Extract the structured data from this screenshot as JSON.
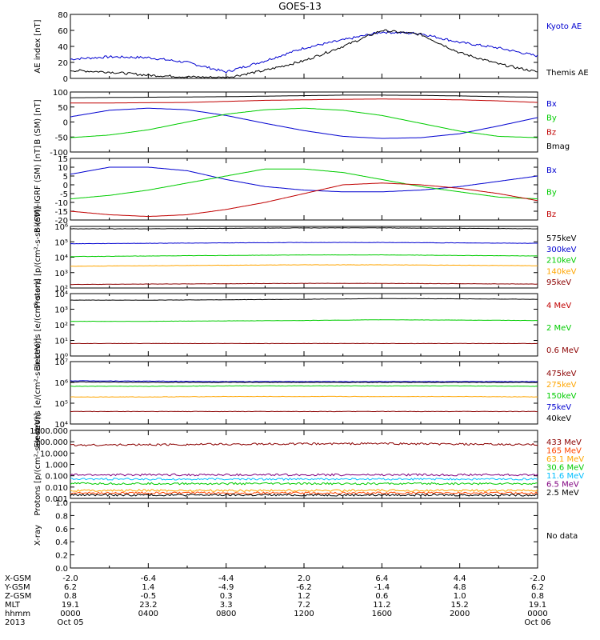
{
  "figure": {
    "title": "GOES-13",
    "nodata_label": "No data",
    "footer_rows": [
      {
        "label": "X-GSM",
        "values": [
          "-2.0",
          "-6.4",
          "-4.4",
          "2.0",
          "6.4",
          "4.4",
          "-2.0"
        ]
      },
      {
        "label": "Y-GSM",
        "values": [
          "6.2",
          "1.4",
          "-4.9",
          "-6.2",
          "-1.4",
          "4.8",
          "6.2"
        ]
      },
      {
        "label": "Z-GSM",
        "values": [
          "0.8",
          "-0.5",
          "0.3",
          "1.2",
          "0.6",
          "1.0",
          "0.8"
        ]
      },
      {
        "label": "MLT",
        "values": [
          "19.1",
          "23.2",
          "3.3",
          "7.2",
          "11.2",
          "15.2",
          "19.1"
        ]
      },
      {
        "label": "hhmm",
        "values": [
          "0000",
          "0400",
          "0800",
          "1200",
          "1600",
          "2000",
          "0000"
        ]
      },
      {
        "label": "2013",
        "values": [
          "Oct 05",
          "",
          "",
          "",
          "",
          "",
          "Oct 06"
        ]
      }
    ]
  },
  "chart_data": [
    {
      "type": "line",
      "ylabel": "AE index [nT]",
      "ylim": [
        0,
        80
      ],
      "yscale": "linear",
      "yticks": [
        "0",
        "20",
        "40",
        "60",
        "80"
      ],
      "x_hours": [
        0,
        2,
        4,
        6,
        8,
        10,
        12,
        14,
        16,
        18,
        20,
        22,
        24
      ],
      "series": [
        {
          "name": "Kyoto AE",
          "color": "#0000d0",
          "values": [
            24,
            27,
            26,
            20,
            8,
            22,
            38,
            48,
            58,
            56,
            45,
            38,
            28
          ]
        },
        {
          "name": "Themis AE",
          "color": "#000000",
          "values": [
            10,
            8,
            4,
            2,
            1,
            10,
            22,
            40,
            60,
            55,
            32,
            18,
            8
          ]
        }
      ]
    },
    {
      "type": "line",
      "ylabel": "B (SM) [nT]",
      "ylim": [
        -110,
        120
      ],
      "yscale": "linear",
      "yticks": [
        "-100",
        "-50",
        "0",
        "50",
        "100"
      ],
      "x_hours": [
        0,
        2,
        4,
        6,
        8,
        10,
        12,
        14,
        16,
        18,
        20,
        22,
        24
      ],
      "series": [
        {
          "name": "Bx",
          "color": "#0000d0",
          "values": [
            25,
            50,
            58,
            52,
            30,
            0,
            -28,
            -50,
            -58,
            -55,
            -40,
            -10,
            22
          ]
        },
        {
          "name": "By",
          "color": "#00cc00",
          "values": [
            -55,
            -45,
            -25,
            5,
            35,
            52,
            58,
            50,
            30,
            0,
            -30,
            -50,
            -55
          ]
        },
        {
          "name": "Bz",
          "color": "#c00000",
          "values": [
            78,
            78,
            79,
            80,
            84,
            88,
            90,
            92,
            93,
            92,
            90,
            86,
            80
          ]
        },
        {
          "name": "Bmag",
          "color": "#000000",
          "values": [
            98,
            99,
            100,
            101,
            102,
            104,
            106,
            108,
            108,
            107,
            105,
            102,
            100
          ]
        }
      ]
    },
    {
      "type": "line",
      "ylabel": "B (SM)-IGRF (SM) [nT]",
      "ylim": [
        -20,
        15
      ],
      "yscale": "linear",
      "yticks": [
        "-20",
        "-15",
        "-10",
        "-5",
        "0",
        "5",
        "10",
        "15"
      ],
      "x_hours": [
        0,
        2,
        4,
        6,
        8,
        10,
        12,
        14,
        16,
        18,
        20,
        22,
        24
      ],
      "series": [
        {
          "name": "Bx",
          "color": "#0000d0",
          "values": [
            6,
            10,
            10,
            8,
            3,
            -1,
            -3,
            -4,
            -4,
            -3,
            -1,
            2,
            5
          ]
        },
        {
          "name": "By",
          "color": "#00cc00",
          "values": [
            -8,
            -6,
            -3,
            1,
            5,
            9,
            9,
            7,
            3,
            -1,
            -4,
            -7,
            -8
          ]
        },
        {
          "name": "Bz",
          "color": "#c00000",
          "values": [
            -15,
            -17,
            -18,
            -17,
            -14,
            -10,
            -5,
            0,
            1,
            0,
            -2,
            -5,
            -9
          ]
        }
      ]
    },
    {
      "type": "line",
      "ylabel": "Protons [p/(cm²-s-sr-keV)]",
      "ylim": [
        100,
        1000000
      ],
      "yscale": "log",
      "yticks": [
        "10²",
        "10³",
        "10⁴",
        "10⁵",
        "10⁶"
      ],
      "x_hours": [
        0,
        4,
        8,
        12,
        16,
        20,
        24
      ],
      "series": [
        {
          "name": "575keV",
          "color": "#000000",
          "values": [
            700000,
            700000,
            750000,
            800000,
            800000,
            750000,
            700000
          ]
        },
        {
          "name": "300keV",
          "color": "#0000d0",
          "values": [
            75000,
            80000,
            85000,
            90000,
            90000,
            85000,
            80000
          ]
        },
        {
          "name": "210keV",
          "color": "#00cc00",
          "values": [
            11000,
            12000,
            13000,
            14000,
            14000,
            13000,
            12000
          ]
        },
        {
          "name": "140keV",
          "color": "#ffa500",
          "values": [
            2600,
            2800,
            3000,
            3200,
            3200,
            3000,
            2800
          ]
        },
        {
          "name": "95keV",
          "color": "#8b0000",
          "values": [
            170,
            180,
            190,
            200,
            200,
            190,
            180
          ]
        }
      ]
    },
    {
      "type": "line",
      "ylabel": "Electrons [e/(cm²-s-sr)]",
      "ylim": [
        1,
        100000
      ],
      "yscale": "log",
      "yticks": [
        "10⁰",
        "10¹",
        "10²",
        "10³",
        "10⁴"
      ],
      "x_hours": [
        0,
        4,
        8,
        12,
        16,
        20,
        24
      ],
      "series": [
        {
          "name": "4 MeV",
          "color": "#c00000",
          "values": []
        },
        {
          "name": "2 MeV",
          "color": "#00cc00",
          "values": [
            600,
            600,
            650,
            700,
            800,
            750,
            700
          ]
        },
        {
          "name": "0.6 MeV",
          "color": "#8b0000",
          "values": [
            10,
            10,
            10,
            10,
            10,
            10,
            10
          ]
        },
        {
          "name": "",
          "color": "#000000",
          "values": [
            30000,
            30000,
            32000,
            35000,
            40000,
            38000,
            35000
          ]
        }
      ]
    },
    {
      "type": "line",
      "ylabel": "Electrons [e/(cm²-s-sr-keV)]",
      "ylim": [
        10000,
        10000000
      ],
      "yscale": "log",
      "yticks": [
        "10⁴",
        "10⁵",
        "10⁶",
        "10⁷"
      ],
      "x_hours": [
        0,
        4,
        8,
        12,
        16,
        20,
        24
      ],
      "series": [
        {
          "name": "475keV",
          "color": "#8b0000",
          "values": [
            40000,
            40000,
            40000,
            40000,
            40000,
            40000,
            40000
          ]
        },
        {
          "name": "275keV",
          "color": "#ffa500",
          "values": [
            200000,
            200000,
            210000,
            210000,
            210000,
            210000,
            200000
          ]
        },
        {
          "name": "150keV",
          "color": "#00cc00",
          "values": [
            650000,
            650000,
            680000,
            680000,
            680000,
            680000,
            650000
          ]
        },
        {
          "name": "75keV",
          "color": "#0000d0",
          "values": [
            1200000,
            1150000,
            1100000,
            1100000,
            1100000,
            1100000,
            1100000
          ]
        },
        {
          "name": "40keV",
          "color": "#000000",
          "values": [
            1050000,
            1000000,
            1000000,
            1000000,
            1000000,
            1000000,
            1000000
          ]
        }
      ]
    },
    {
      "type": "line",
      "ylabel": "Protons [p/(cm²-s-sr-keV)]",
      "ylim": [
        0.001,
        1000
      ],
      "yscale": "log",
      "yticks": [
        "0.001",
        "0.010",
        "0.100",
        "1.000",
        "10.000",
        "100.000",
        "1000.000"
      ],
      "x_hours": [
        0,
        4,
        8,
        12,
        16,
        20,
        24
      ],
      "series": [
        {
          "name": "433 MeV",
          "color": "#8b0000",
          "values": [
            50,
            55,
            60,
            65,
            70,
            60,
            55
          ]
        },
        {
          "name": "165 MeV",
          "color": "#ff4500",
          "values": [
            0.003,
            0.003,
            0.003,
            0.003,
            0.003,
            0.003,
            0.003
          ]
        },
        {
          "name": "63.1 MeV",
          "color": "#ffa500",
          "values": [
            0.005,
            0.005,
            0.005,
            0.005,
            0.005,
            0.005,
            0.005
          ]
        },
        {
          "name": "30.6 MeV",
          "color": "#00cc00",
          "values": [
            0.02,
            0.02,
            0.02,
            0.02,
            0.02,
            0.02,
            0.02
          ]
        },
        {
          "name": "11.6 MeV",
          "color": "#00bfff",
          "values": [
            0.05,
            0.05,
            0.05,
            0.05,
            0.05,
            0.05,
            0.05
          ]
        },
        {
          "name": "6.5 MeV",
          "color": "#800080",
          "values": [
            0.12,
            0.12,
            0.12,
            0.12,
            0.12,
            0.12,
            0.12
          ]
        },
        {
          "name": "2.5 MeV",
          "color": "#000000",
          "values": [
            0.002,
            0.002,
            0.002,
            0.002,
            0.002,
            0.002,
            0.002
          ]
        }
      ]
    },
    {
      "type": "line",
      "ylabel": "X-ray",
      "ylim": [
        0,
        1
      ],
      "yscale": "linear",
      "yticks": [
        "0.0",
        "0.2",
        "0.4",
        "0.6",
        "0.8",
        "1.0"
      ],
      "x_hours": [],
      "series": []
    }
  ]
}
